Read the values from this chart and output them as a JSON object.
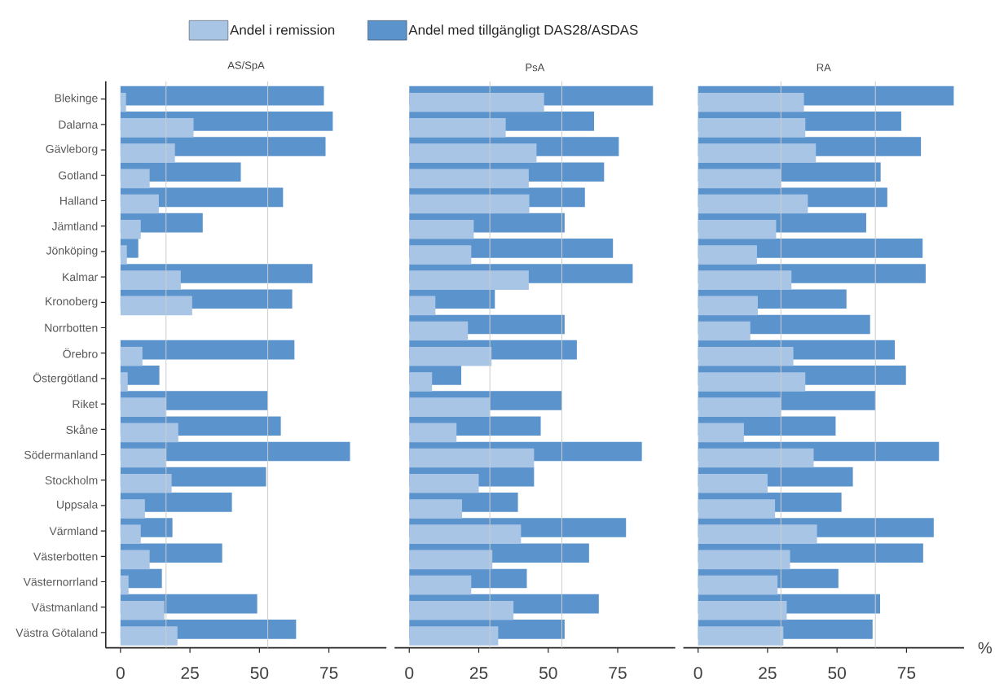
{
  "chart_data": [
    {
      "type": "bar",
      "orientation": "horizontal",
      "title": "AS/SpA",
      "legend": "top",
      "categories": [
        "Blekinge",
        "Dalarna",
        "Gävleborg",
        "Gotland",
        "Halland",
        "Jämtland",
        "Jönköping",
        "Kalmar",
        "Kronoberg",
        "Norrbotten",
        "Örebro",
        "Östergötland",
        "Riket",
        "Skåne",
        "Södermanland",
        "Stockholm",
        "Uppsala",
        "Värmland",
        "Västerbotten",
        "Västernorrland",
        "Västmanland",
        "Västra Götaland"
      ],
      "series": [
        {
          "name": "Andel med tillgängligt DAS28/ASDAS",
          "color": "#5b93cd",
          "values": [
            73.2,
            76.4,
            73.8,
            43.3,
            58.5,
            29.6,
            6.4,
            69.1,
            61.8,
            null,
            62.6,
            14.0,
            53.0,
            57.7,
            82.6,
            52.4,
            40.1,
            18.7,
            36.6,
            14.9,
            49.2,
            63.2
          ]
        },
        {
          "name": "Andel i remission",
          "color": "#a8c5e6",
          "values": [
            2.0,
            26.3,
            19.6,
            10.5,
            13.8,
            7.3,
            2.3,
            21.7,
            25.8,
            null,
            7.9,
            2.6,
            16.4,
            20.8,
            16.4,
            18.4,
            8.8,
            7.3,
            10.5,
            2.9,
            15.8,
            20.5
          ]
        }
      ],
      "xlim": [
        -5.3,
        95.7
      ],
      "xticks": [
        0,
        25,
        50,
        75
      ],
      "ref_lines": [
        {
          "axis": "x",
          "value": 16.4,
          "color": "#cccccc"
        },
        {
          "axis": "x",
          "value": 53.0,
          "color": "#cccccc"
        }
      ]
    },
    {
      "type": "bar",
      "orientation": "horizontal",
      "title": "PsA",
      "tick_labels": "x",
      "categories": [
        null,
        null,
        null,
        null,
        null,
        null,
        null,
        null,
        null,
        null,
        null,
        null,
        null,
        null,
        null,
        null,
        null,
        null,
        null,
        null,
        null,
        null
      ],
      "series": [
        {
          "color": "#5b93cd",
          "values": [
            87.7,
            66.5,
            75.4,
            70.1,
            63.2,
            55.9,
            73.3,
            80.4,
            30.8,
            55.9,
            60.3,
            18.7,
            54.9,
            47.3,
            83.7,
            44.9,
            39.1,
            78.0,
            64.7,
            42.3,
            68.2,
            55.9
          ]
        },
        {
          "color": "#a8c5e6",
          "values": [
            48.5,
            34.7,
            45.8,
            43.0,
            43.2,
            23.2,
            22.3,
            43.0,
            9.4,
            21.1,
            29.6,
            8.2,
            29.0,
            17.0,
            44.9,
            25.0,
            19.0,
            40.2,
            29.9,
            22.3,
            37.5,
            32.0
          ]
        }
      ],
      "xlim": [
        -5.3,
        95.7
      ],
      "xticks": [
        0,
        25,
        50,
        75
      ],
      "ref_lines": [
        {
          "axis": "x",
          "value": 29.0,
          "color": "#cccccc"
        },
        {
          "axis": "x",
          "value": 54.9,
          "color": "#cccccc"
        }
      ]
    },
    {
      "type": "bar",
      "orientation": "horizontal",
      "title": "RA",
      "xlabel": "%",
      "tick_labels": "x",
      "categories": [
        null,
        null,
        null,
        null,
        null,
        null,
        null,
        null,
        null,
        null,
        null,
        null,
        null,
        null,
        null,
        null,
        null,
        null,
        null,
        null,
        null,
        null
      ],
      "series": [
        {
          "color": "#5b93cd",
          "values": [
            92.0,
            73.1,
            80.2,
            65.7,
            68.1,
            60.5,
            80.8,
            81.9,
            53.4,
            61.9,
            70.8,
            74.8,
            63.8,
            49.5,
            86.7,
            55.7,
            51.6,
            84.8,
            81.0,
            50.5,
            65.5,
            62.8
          ]
        },
        {
          "color": "#a8c5e6",
          "values": [
            38.1,
            38.6,
            42.4,
            29.8,
            39.5,
            28.1,
            21.2,
            33.6,
            21.5,
            18.8,
            34.3,
            38.6,
            29.8,
            16.5,
            41.6,
            25.0,
            27.7,
            42.8,
            33.1,
            28.6,
            31.9,
            30.7
          ]
        }
      ],
      "xlim": [
        -5.3,
        95.7
      ],
      "xticks": [
        0,
        25,
        50,
        75
      ],
      "ref_lines": [
        {
          "axis": "x",
          "value": 29.8,
          "color": "#cccccc"
        },
        {
          "axis": "x",
          "value": 63.8,
          "color": "#cccccc"
        }
      ]
    }
  ]
}
